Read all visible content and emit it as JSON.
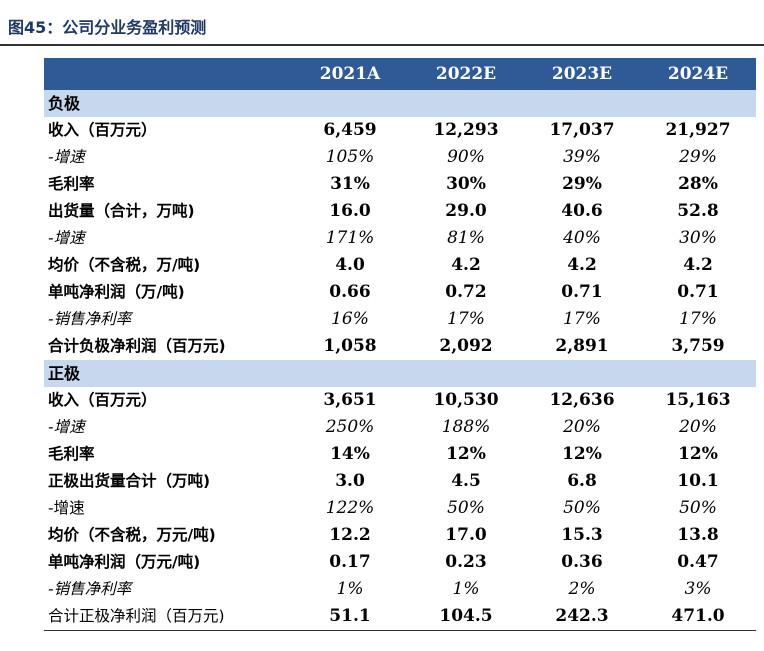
{
  "title": "图45：公司分业务盈利预测",
  "columns": [
    "2021A",
    "2022E",
    "2023E",
    "2024E"
  ],
  "sections": [
    {
      "name": "负极",
      "rows": [
        {
          "label": "收入（百万元）",
          "style": "bold",
          "values": [
            "6,459",
            "12,293",
            "17,037",
            "21,927"
          ]
        },
        {
          "label": "-增速",
          "style": "italic",
          "values": [
            "105%",
            "90%",
            "39%",
            "29%"
          ]
        },
        {
          "label": "毛利率",
          "style": "bold",
          "values": [
            "31%",
            "30%",
            "29%",
            "28%"
          ]
        },
        {
          "label": "出货量（合计，万吨)",
          "style": "bold",
          "values": [
            "16.0",
            "29.0",
            "40.6",
            "52.8"
          ]
        },
        {
          "label": "-增速",
          "style": "italic",
          "values": [
            "171%",
            "81%",
            "40%",
            "30%"
          ]
        },
        {
          "label": "均价（不含税，万/吨)",
          "style": "bold",
          "values": [
            "4.0",
            "4.2",
            "4.2",
            "4.2"
          ]
        },
        {
          "label": "单吨净利润（万/吨)",
          "style": "bold",
          "values": [
            "0.66",
            "0.72",
            "0.71",
            "0.71"
          ]
        },
        {
          "label": "-销售净利率",
          "style": "italic",
          "values": [
            "16%",
            "17%",
            "17%",
            "17%"
          ]
        },
        {
          "label": "合计负极净利润（百万元)",
          "style": "bold",
          "values": [
            "1,058",
            "2,092",
            "2,891",
            "3,759"
          ]
        }
      ]
    },
    {
      "name": "正极",
      "rows": [
        {
          "label": "收入（百万元）",
          "style": "bold",
          "values": [
            "3,651",
            "10,530",
            "12,636",
            "15,163"
          ]
        },
        {
          "label": "-增速",
          "style": "italic",
          "values": [
            "250%",
            "188%",
            "20%",
            "20%"
          ]
        },
        {
          "label": "毛利率",
          "style": "bold",
          "values": [
            "14%",
            "12%",
            "12%",
            "12%"
          ]
        },
        {
          "label": "正极出货量合计（万吨)",
          "style": "bold",
          "values": [
            "3.0",
            "4.5",
            "6.8",
            "10.1"
          ]
        },
        {
          "label": "-增速",
          "style": "italic-values",
          "values": [
            "122%",
            "50%",
            "50%",
            "50%"
          ]
        },
        {
          "label": "均价（不含税，万元/吨)",
          "style": "bold",
          "values": [
            "12.2",
            "17.0",
            "15.3",
            "13.8"
          ]
        },
        {
          "label": "单吨净利润（万元/吨)",
          "style": "bold",
          "values": [
            "0.17",
            "0.23",
            "0.36",
            "0.47"
          ]
        },
        {
          "label": "-销售净利率",
          "style": "italic",
          "values": [
            "1%",
            "1%",
            "2%",
            "3%"
          ]
        },
        {
          "label": "合计正极净利润（百万元)",
          "style": "bold-values",
          "values": [
            "51.1",
            "104.5",
            "242.3",
            "471.0"
          ]
        }
      ]
    }
  ]
}
